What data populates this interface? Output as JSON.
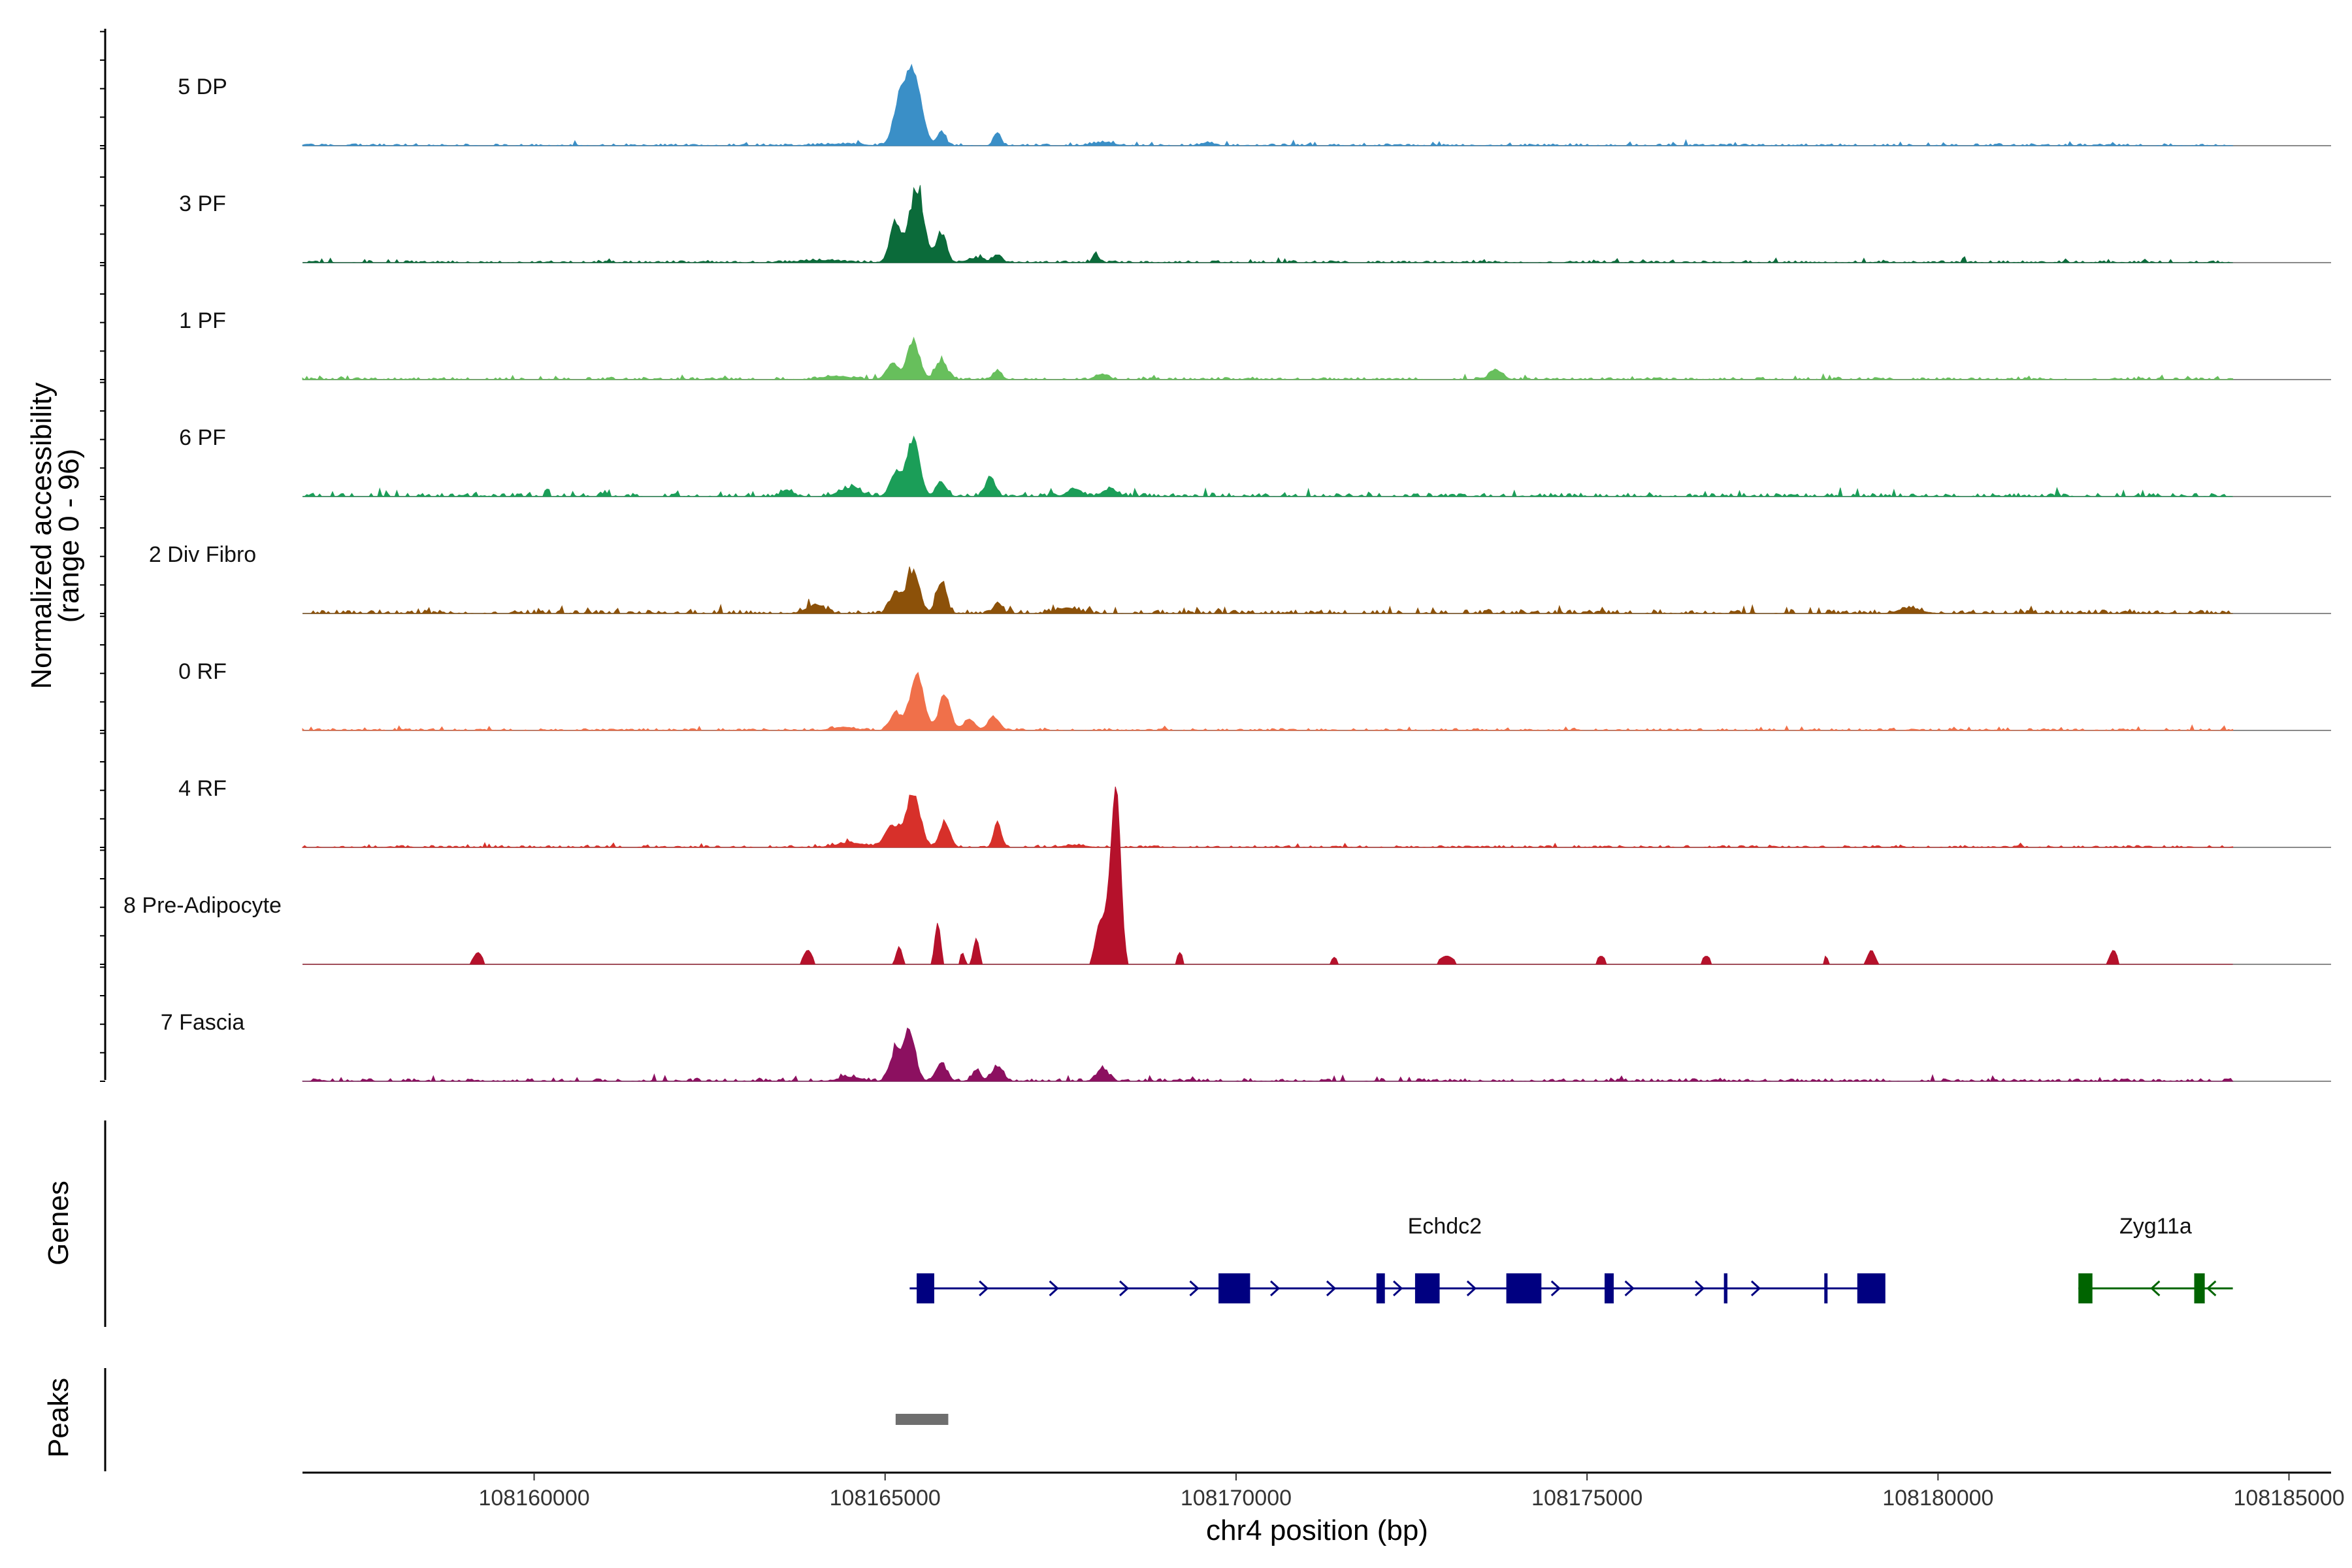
{
  "chart_data": {
    "type": "area",
    "title": "",
    "ylabel": "Normalized accessibility",
    "ylabel_range": "(range 0 - 96)",
    "xlabel": "chr4 position (bp)",
    "xlim": [
      108156700,
      108185600
    ],
    "ylim": [
      0,
      96
    ],
    "x_ticks": [
      108160000,
      108165000,
      108170000,
      108175000,
      108180000,
      108185000
    ],
    "x_tick_labels": [
      "108160000",
      "108165000",
      "108170000",
      "108175000",
      "108180000",
      "108185000"
    ],
    "data_range": [
      108156700,
      108184200
    ],
    "series": [
      {
        "name": "5 DP",
        "color": "#3A8FC7",
        "baseline": 1.6,
        "peaks": [
          [
            108165400,
            110,
            70
          ],
          [
            108165200,
            90,
            35
          ],
          [
            108165800,
            60,
            12
          ],
          [
            108166600,
            50,
            13
          ],
          [
            108164400,
            250,
            1.5
          ],
          [
            108168100,
            150,
            3
          ],
          [
            108169600,
            80,
            3
          ]
        ]
      },
      {
        "name": "3 PF",
        "color": "#0B6B3A",
        "baseline": 1.6,
        "peaks": [
          [
            108165450,
            100,
            70
          ],
          [
            108165150,
            80,
            38
          ],
          [
            108165800,
            70,
            28
          ],
          [
            108166600,
            60,
            7
          ],
          [
            108166300,
            120,
            4
          ],
          [
            108168000,
            40,
            9
          ],
          [
            108164100,
            300,
            2
          ]
        ]
      },
      {
        "name": "1 PF",
        "color": "#67BF5C",
        "baseline": 1.8,
        "peaks": [
          [
            108165400,
            90,
            36
          ],
          [
            108165100,
            80,
            15
          ],
          [
            108165800,
            80,
            18
          ],
          [
            108166600,
            60,
            8
          ],
          [
            108173700,
            90,
            9
          ],
          [
            108168100,
            80,
            5
          ],
          [
            108164300,
            200,
            3
          ]
        ]
      },
      {
        "name": "6 PF",
        "color": "#1B9E58",
        "baseline": 2.8,
        "peaks": [
          [
            108165400,
            90,
            52
          ],
          [
            108165150,
            80,
            22
          ],
          [
            108165800,
            70,
            14
          ],
          [
            108166500,
            70,
            18
          ],
          [
            108164500,
            150,
            8
          ],
          [
            108167700,
            100,
            7
          ],
          [
            108168200,
            100,
            7
          ],
          [
            108163600,
            80,
            6
          ]
        ]
      },
      {
        "name": "2 Div Fibro",
        "color": "#8C5109",
        "baseline": 3,
        "peaks": [
          [
            108165400,
            90,
            38
          ],
          [
            108165150,
            80,
            20
          ],
          [
            108165800,
            70,
            30
          ],
          [
            108166600,
            60,
            10
          ],
          [
            108164000,
            120,
            8
          ],
          [
            108167600,
            150,
            5
          ],
          [
            108179600,
            150,
            5
          ]
        ]
      },
      {
        "name": "0 RF",
        "color": "#F0704A",
        "baseline": 1.6,
        "peaks": [
          [
            108165450,
            100,
            50
          ],
          [
            108165150,
            80,
            15
          ],
          [
            108165850,
            80,
            32
          ],
          [
            108166550,
            80,
            12
          ],
          [
            108166200,
            80,
            10
          ],
          [
            108164400,
            150,
            3
          ]
        ]
      },
      {
        "name": "4 RF",
        "color": "#D7302A",
        "baseline": 1.6,
        "peaks": [
          [
            108165400,
            100,
            50
          ],
          [
            108165100,
            100,
            20
          ],
          [
            108165850,
            70,
            22
          ],
          [
            108166600,
            50,
            24
          ],
          [
            108164500,
            200,
            4
          ],
          [
            108167700,
            150,
            2
          ]
        ]
      },
      {
        "name": "8 Pre-Adipocyte",
        "color": "#B5112B",
        "spiky": true,
        "baseline": 0,
        "peaks": [
          [
            108168300,
            60,
            130
          ],
          [
            108168200,
            70,
            50
          ],
          [
            108168050,
            60,
            30
          ],
          [
            108165750,
            40,
            35
          ],
          [
            108165200,
            40,
            15
          ],
          [
            108166300,
            40,
            22
          ],
          [
            108166100,
            30,
            10
          ],
          [
            108163900,
            60,
            12
          ],
          [
            108159200,
            60,
            10
          ],
          [
            108179050,
            50,
            12
          ],
          [
            108182500,
            50,
            12
          ],
          [
            108169200,
            40,
            10
          ],
          [
            108171400,
            40,
            6
          ],
          [
            108173000,
            100,
            7
          ],
          [
            108175200,
            60,
            7
          ],
          [
            108176700,
            60,
            7
          ],
          [
            108178400,
            30,
            7
          ]
        ]
      },
      {
        "name": "7 Fascia",
        "color": "#8C1060",
        "baseline": 2.2,
        "peaks": [
          [
            108165350,
            80,
            45
          ],
          [
            108165150,
            80,
            28
          ],
          [
            108165800,
            80,
            16
          ],
          [
            108166600,
            80,
            14
          ],
          [
            108166300,
            60,
            10
          ],
          [
            108168100,
            80,
            12
          ],
          [
            108164500,
            150,
            4
          ]
        ]
      }
    ],
    "track_labels": {
      "genes": "Genes",
      "peaks": "Peaks"
    },
    "genes": [
      {
        "name": "Echdc2",
        "strand": "+",
        "color": "#000080",
        "start": 108165350,
        "end": 108179200,
        "exons": [
          [
            108165450,
            108165700
          ],
          [
            108169750,
            108170200
          ],
          [
            108172000,
            108172120
          ],
          [
            108172550,
            108172900
          ],
          [
            108173850,
            108174350
          ],
          [
            108175250,
            108175380
          ],
          [
            108176950,
            108177000
          ],
          [
            108178380,
            108178420
          ],
          [
            108178850,
            108179250
          ]
        ],
        "arrows": [
          108165600,
          108166400,
          108167400,
          108168400,
          108169400,
          108170550,
          108171350,
          108172300,
          108173350,
          108174550,
          108175600,
          108176600,
          108177400
        ]
      },
      {
        "name": "Zyg11a",
        "strand": "-",
        "color": "#006400",
        "start": 108182000,
        "end": 108184200,
        "exons": [
          [
            108182000,
            108182200
          ],
          [
            108183650,
            108183800
          ]
        ],
        "arrows": [
          108183100,
          108183900
        ]
      }
    ],
    "peaks": [
      [
        108165150,
        108165900
      ]
    ],
    "peak_color": "#6E6E6E"
  }
}
